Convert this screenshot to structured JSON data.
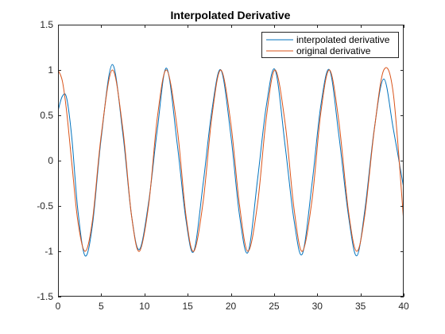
{
  "chart_data": {
    "type": "line",
    "title": "Interpolated Derivative",
    "xlabel": "",
    "ylabel": "",
    "xlim": [
      0,
      40
    ],
    "ylim": [
      -1.5,
      1.5
    ],
    "xticks": [
      0,
      5,
      10,
      15,
      20,
      25,
      30,
      35,
      40
    ],
    "yticks": [
      -1.5,
      -1,
      -0.5,
      0,
      0.5,
      1,
      1.5
    ],
    "xtick_labels": [
      "0",
      "5",
      "10",
      "15",
      "20",
      "25",
      "30",
      "35",
      "40"
    ],
    "ytick_labels": [
      "-1.5",
      "-1",
      "-0.5",
      "0",
      "0.5",
      "1",
      "1.5"
    ],
    "grid": false,
    "legend_position": "top-right",
    "series": [
      {
        "name": "interpolated derivative",
        "color": "#0072BD",
        "x": [
          0,
          0.5,
          1.0,
          1.6,
          2.3,
          3.14,
          4.0,
          5.0,
          6.28,
          7.5,
          8.5,
          9.42,
          10.5,
          11.5,
          12.57,
          13.8,
          14.8,
          15.71,
          16.8,
          17.8,
          18.85,
          20.0,
          21.0,
          21.99,
          23.1,
          24.1,
          25.13,
          26.3,
          27.3,
          28.27,
          29.4,
          30.4,
          31.42,
          32.5,
          33.6,
          34.56,
          35.5,
          36.6,
          37.7,
          38.8,
          40.0
        ],
        "y": [
          0.55,
          0.71,
          0.69,
          0.25,
          -0.55,
          -1.05,
          -0.7,
          0.25,
          1.06,
          0.3,
          -0.6,
          -0.98,
          -0.45,
          0.35,
          1.02,
          0.18,
          -0.65,
          -1.0,
          -0.25,
          0.55,
          1.0,
          0.28,
          -0.6,
          -1.01,
          -0.2,
          0.6,
          1.0,
          0.15,
          -0.65,
          -1.03,
          -0.25,
          0.6,
          1.0,
          0.28,
          -0.6,
          -1.05,
          -0.55,
          0.35,
          0.9,
          0.35,
          -0.3
        ]
      },
      {
        "name": "original derivative",
        "color": "#D95319",
        "x": [
          0,
          0.5,
          1.0,
          1.6,
          2.3,
          3.14,
          4.0,
          5.0,
          6.28,
          7.5,
          8.5,
          9.42,
          10.5,
          11.5,
          12.57,
          13.8,
          14.8,
          15.71,
          16.8,
          17.8,
          18.85,
          20.0,
          21.0,
          21.99,
          23.1,
          24.1,
          25.13,
          26.3,
          27.3,
          28.27,
          29.4,
          30.4,
          31.42,
          32.5,
          33.6,
          34.56,
          35.5,
          36.6,
          37.7,
          38.8,
          40.0
        ],
        "y": [
          1.0,
          0.88,
          0.54,
          -0.03,
          -0.67,
          -1.0,
          -0.65,
          0.28,
          1.0,
          0.35,
          -0.6,
          -1.0,
          -0.48,
          0.48,
          1.0,
          0.35,
          -0.6,
          -1.0,
          -0.45,
          0.48,
          1.0,
          0.41,
          -0.49,
          -1.0,
          -0.47,
          0.47,
          1.0,
          0.4,
          -0.52,
          -1.0,
          -0.43,
          0.52,
          1.0,
          0.43,
          -0.55,
          -1.0,
          -0.6,
          0.34,
          1.0,
          0.74,
          -0.67
        ]
      }
    ]
  }
}
